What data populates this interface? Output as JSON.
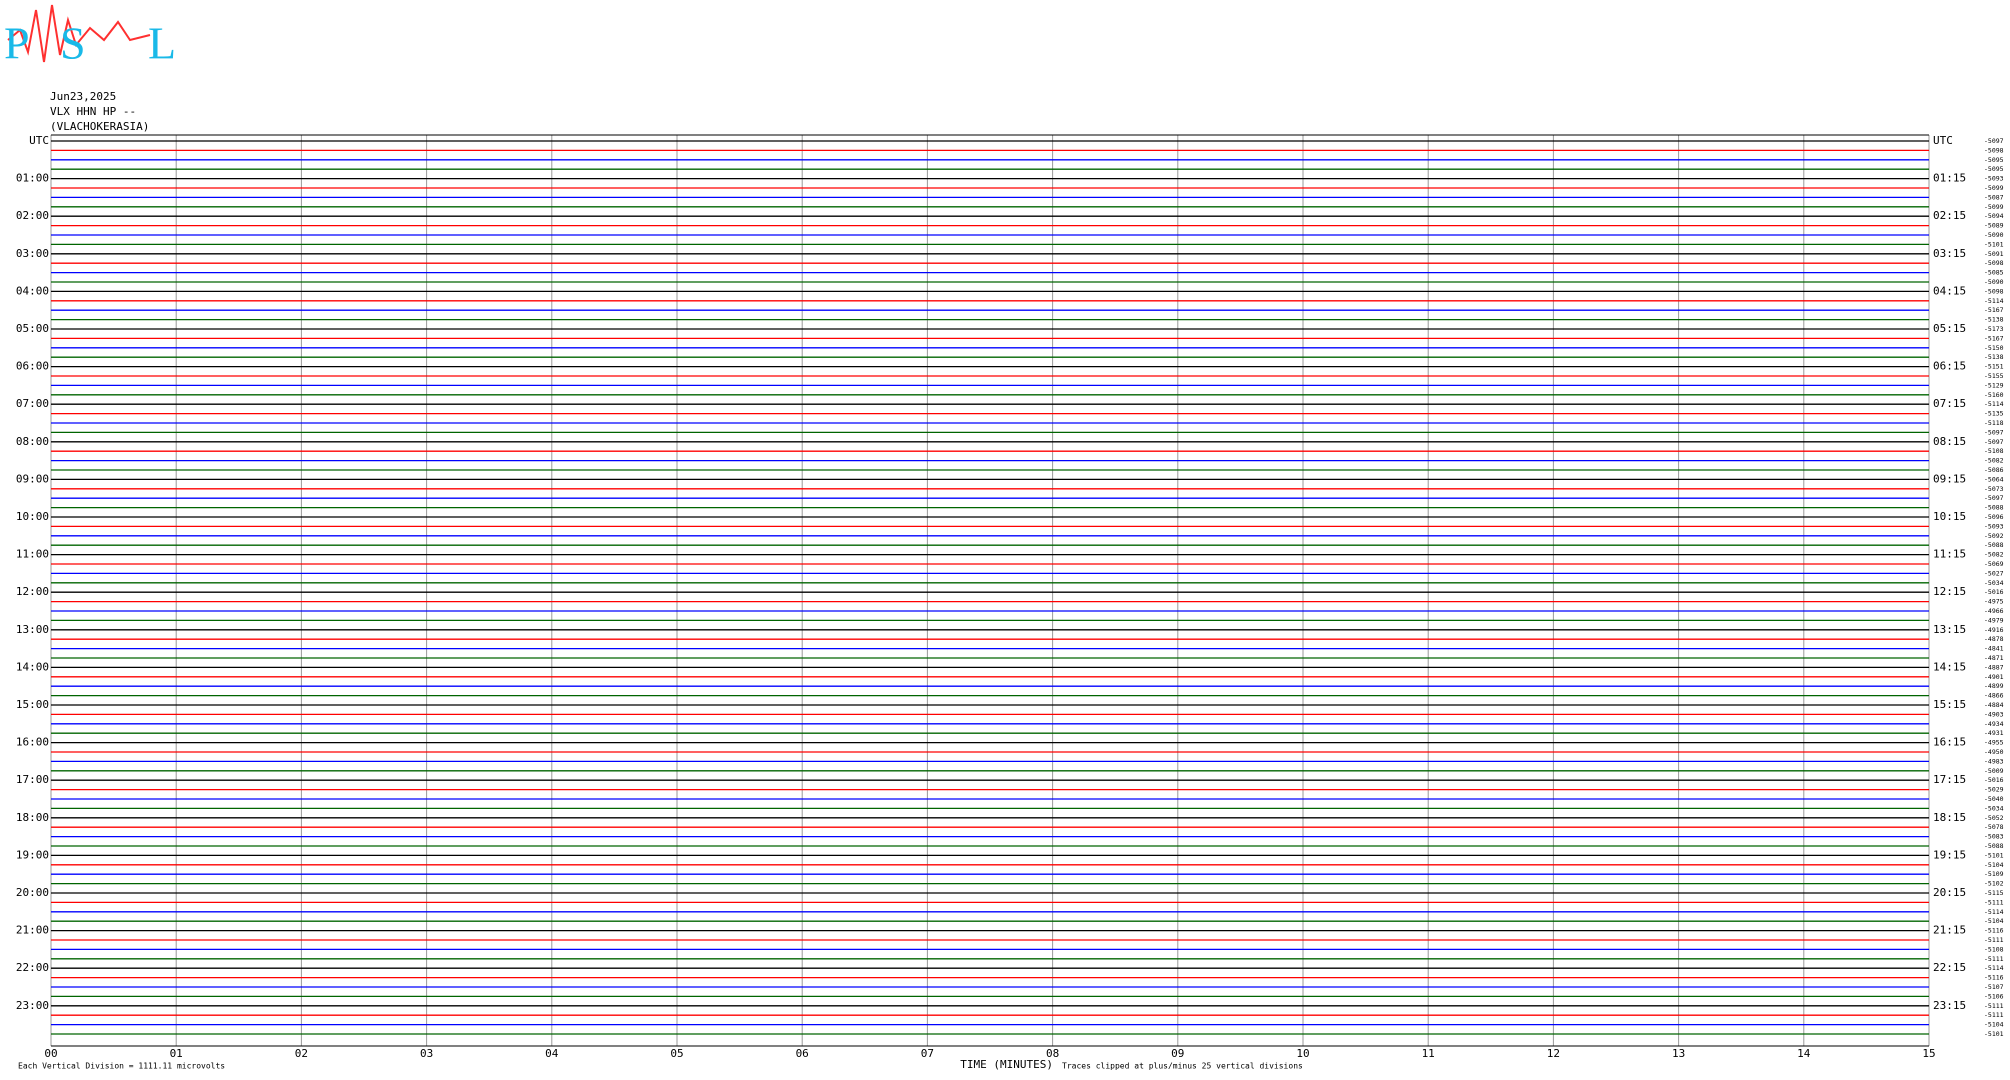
{
  "chart_data": {
    "type": "helicorder",
    "logo": [
      "P",
      "S",
      "L"
    ],
    "date": "Jun23,2025",
    "station": "VLX HHN HP --",
    "location": "(VLACHOKERASIA)",
    "left_labels": [
      "UTC",
      "01:00",
      "02:00",
      "03:00",
      "04:00",
      "05:00",
      "06:00",
      "07:00",
      "08:00",
      "09:00",
      "10:00",
      "11:00",
      "12:00",
      "13:00",
      "14:00",
      "15:00",
      "16:00",
      "17:00",
      "18:00",
      "19:00",
      "20:00",
      "21:00",
      "22:00",
      "23:00"
    ],
    "right_labels": [
      "UTC",
      "01:15",
      "02:15",
      "03:15",
      "04:15",
      "05:15",
      "06:15",
      "07:15",
      "08:15",
      "09:15",
      "10:15",
      "11:15",
      "12:15",
      "13:15",
      "14:15",
      "15:15",
      "16:15",
      "17:15",
      "18:15",
      "19:15",
      "20:15",
      "21:15",
      "22:15",
      "23:15"
    ],
    "offsets": [
      -5097,
      -5098,
      -5095,
      -5095,
      -5093,
      -5099,
      -5087,
      -5099,
      -5094,
      -5089,
      -5090,
      -5101,
      -5091,
      -5098,
      -5085,
      -5090,
      -5098,
      -5114,
      -5167,
      -5138,
      -5173,
      -5167,
      -5150,
      -5138,
      -5151,
      -5155,
      -5129,
      -5160,
      -5114,
      -5135,
      -5118,
      -5097,
      -5097,
      -5108,
      -5082,
      -5086,
      -5064,
      -5073,
      -5097,
      -5088,
      -5096,
      -5093,
      -5092,
      -5088,
      -5082,
      -5069,
      -5027,
      -5034,
      -5016,
      -4975,
      -4966,
      -4979,
      -4916,
      -4878,
      -4841,
      -4871,
      -4887,
      -4901,
      -4899,
      -4866,
      -4884,
      -4903,
      -4934,
      -4931,
      -4955,
      -4950,
      -4983,
      -5009,
      -5016,
      -5029,
      -5040,
      -5034,
      -5052,
      -5078,
      -5083,
      -5088,
      -5101,
      -5104,
      -5109,
      -5102,
      -5115,
      -5111,
      -5114,
      -5104,
      -5116,
      -5111,
      -5108,
      -5111,
      -5114,
      -5116,
      -5107,
      -5106,
      -5111,
      -5111,
      -5104,
      -5101
    ],
    "colors": [
      "#000000",
      "#ff0000",
      "#0000ff",
      "#006400"
    ],
    "xlim": [
      0,
      15
    ],
    "xticks": [
      {
        "value": 0,
        "label": "00"
      },
      {
        "value": 1,
        "label": "01"
      },
      {
        "value": 2,
        "label": "02"
      },
      {
        "value": 3,
        "label": "03"
      },
      {
        "value": 4,
        "label": "04"
      },
      {
        "value": 5,
        "label": "05"
      },
      {
        "value": 6,
        "label": "06"
      },
      {
        "value": 7,
        "label": "07"
      },
      {
        "value": 8,
        "label": "08"
      },
      {
        "value": 9,
        "label": "09"
      },
      10,
      11,
      12,
      13,
      14,
      15
    ],
    "xlabel": "TIME (MINUTES)",
    "scale_note": "Each Vertical Division = 1111.11 microvolts",
    "clip_note": "Traces clipped at plus/minus 25 vertical divisions",
    "grid": true
  }
}
